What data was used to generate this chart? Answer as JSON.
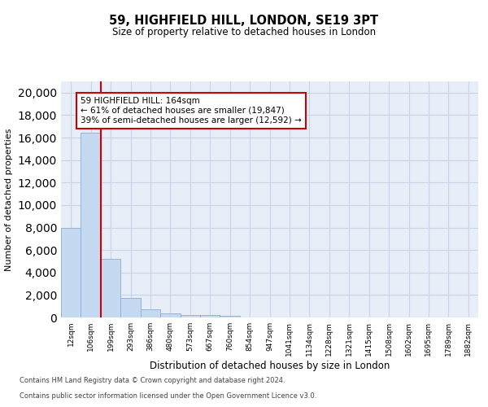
{
  "title": "59, HIGHFIELD HILL, LONDON, SE19 3PT",
  "subtitle": "Size of property relative to detached houses in London",
  "xlabel": "Distribution of detached houses by size in London",
  "ylabel": "Number of detached properties",
  "annotation_text": "59 HIGHFIELD HILL: 164sqm\n← 61% of detached houses are smaller (19,847)\n39% of semi-detached houses are larger (12,592) →",
  "vline_x": 1.5,
  "bar_labels": [
    "12sqm",
    "106sqm",
    "199sqm",
    "293sqm",
    "386sqm",
    "480sqm",
    "573sqm",
    "667sqm",
    "760sqm",
    "854sqm",
    "947sqm",
    "1041sqm",
    "1134sqm",
    "1228sqm",
    "1321sqm",
    "1415sqm",
    "1508sqm",
    "1602sqm",
    "1695sqm",
    "1789sqm",
    "1882sqm"
  ],
  "bar_values": [
    8000,
    16450,
    5200,
    1750,
    700,
    350,
    250,
    200,
    150,
    0,
    0,
    0,
    0,
    0,
    0,
    0,
    0,
    0,
    0,
    0,
    0
  ],
  "bar_color": "#c5d9f0",
  "bar_edge_color": "#8aadd4",
  "vline_color": "#cc0000",
  "annotation_box_facecolor": "white",
  "annotation_box_edgecolor": "#cc0000",
  "ylim": [
    0,
    21000
  ],
  "yticks": [
    0,
    2000,
    4000,
    6000,
    8000,
    10000,
    12000,
    14000,
    16000,
    18000,
    20000
  ],
  "grid_color": "#c8d4e8",
  "plot_bg_color": "#e8eef8",
  "figure_bg_color": "#ffffff",
  "footer_line1": "Contains HM Land Registry data © Crown copyright and database right 2024.",
  "footer_line2": "Contains public sector information licensed under the Open Government Licence v3.0."
}
